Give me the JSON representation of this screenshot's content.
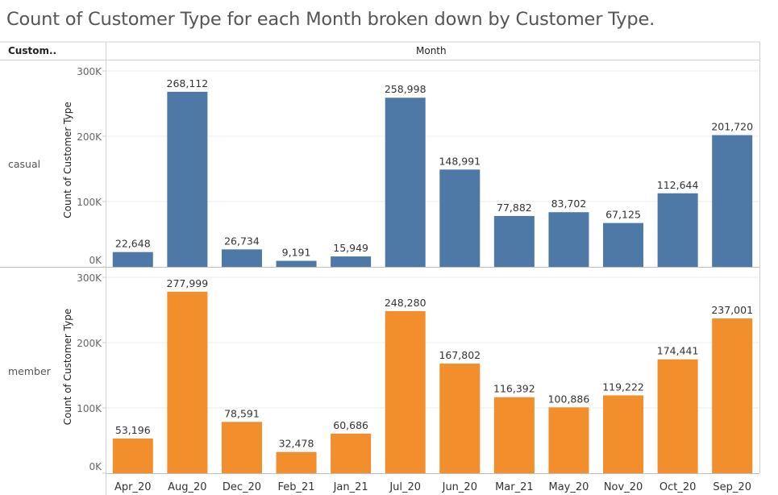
{
  "chart_data": {
    "type": "bar",
    "title": "Count of Customer Type for each Month broken down by Customer Type.",
    "row_header": "Custom..",
    "column_header": "Month",
    "ylabel": "Count of Customer Type",
    "ylim": [
      0,
      300000
    ],
    "yticks": [
      "0K",
      "100K",
      "200K",
      "300K"
    ],
    "grid": true,
    "categories": [
      "Apr_20",
      "Aug_20",
      "Dec_20",
      "Feb_21",
      "Jan_21",
      "Jul_20",
      "Jun_20",
      "Mar_21",
      "May_20",
      "Nov_20",
      "Oct_20",
      "Sep_20"
    ],
    "series": [
      {
        "name": "casual",
        "color": "#4e79a7",
        "values": [
          22648,
          268112,
          26734,
          9191,
          15949,
          258998,
          148991,
          77882,
          83702,
          67125,
          112644,
          201720
        ],
        "labels": [
          "22,648",
          "268,112",
          "26,734",
          "9,191",
          "15,949",
          "258,998",
          "148,991",
          "77,882",
          "83,702",
          "67,125",
          "112,644",
          "201,720"
        ]
      },
      {
        "name": "member",
        "color": "#f28e2b",
        "values": [
          53196,
          277999,
          78591,
          32478,
          60686,
          248280,
          167802,
          116392,
          100886,
          119222,
          174441,
          237001
        ],
        "labels": [
          "53,196",
          "277,999",
          "78,591",
          "32,478",
          "60,686",
          "248,280",
          "167,802",
          "116,392",
          "100,886",
          "119,222",
          "174,441",
          "237,001"
        ]
      }
    ]
  }
}
